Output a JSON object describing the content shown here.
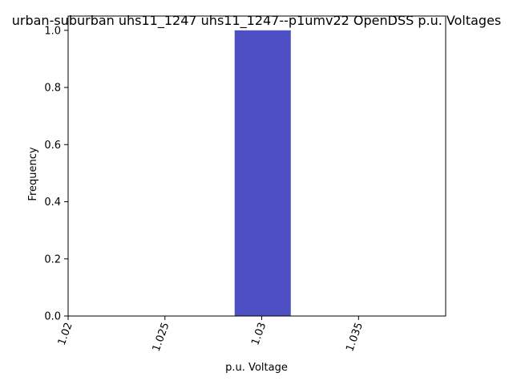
{
  "chart_data": {
    "type": "bar",
    "title": "urban-suburban uhs11_1247 uhs11_1247--p1umv22 OpenDSS p.u. Voltages",
    "xlabel": "p.u. Voltage",
    "ylabel": "Frequency",
    "xlim": [
      1.02,
      1.0395
    ],
    "ylim": [
      0.0,
      1.05
    ],
    "x_ticks": [
      "1.02",
      "1.025",
      "1.03",
      "1.035"
    ],
    "y_ticks": [
      "0.0",
      "0.2",
      "0.4",
      "0.6",
      "0.8",
      "1.0"
    ],
    "bins": [
      {
        "x_start": 1.0286,
        "x_end": 1.0315,
        "value": 1.0
      }
    ],
    "bar_color": "#4f4fc4",
    "grid": false,
    "legend": "none"
  }
}
